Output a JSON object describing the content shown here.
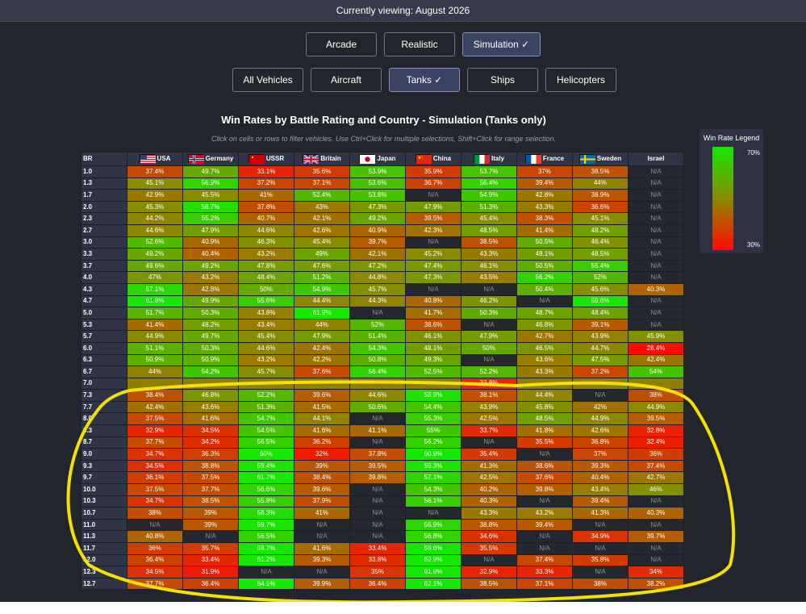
{
  "header": {
    "viewing": "Currently viewing: August 2026"
  },
  "modes": [
    {
      "label": "Arcade",
      "active": false
    },
    {
      "label": "Realistic",
      "active": false
    },
    {
      "label": "Simulation ✓",
      "active": true
    }
  ],
  "vehicle_types": [
    {
      "label": "All Vehicles",
      "active": false
    },
    {
      "label": "Aircraft",
      "active": false
    },
    {
      "label": "Tanks ✓",
      "active": true
    },
    {
      "label": "Ships",
      "active": false
    },
    {
      "label": "Helicopters",
      "active": false
    }
  ],
  "table": {
    "title": "Win Rates by Battle Rating and Country - Simulation (Tanks only)",
    "subtitle": "Click on cells or rows to filter vehicles. Use Ctrl+Click for multiple selections, Shift+Click for range selection.",
    "br_header": "BR",
    "countries": [
      {
        "name": "USA",
        "flag": "usa-flag-icon"
      },
      {
        "name": "Germany",
        "flag": "germany-flag-icon"
      },
      {
        "name": "USSR",
        "flag": "ussr-flag-icon"
      },
      {
        "name": "Britain",
        "flag": "britain-flag-icon"
      },
      {
        "name": "Japan",
        "flag": "japan-flag-icon"
      },
      {
        "name": "China",
        "flag": "china-flag-icon"
      },
      {
        "name": "Italy",
        "flag": "italy-flag-icon"
      },
      {
        "name": "France",
        "flag": "france-flag-icon"
      },
      {
        "name": "Sweden",
        "flag": "sweden-flag-icon"
      },
      {
        "name": "Israel",
        "flag": ""
      }
    ],
    "rows": [
      {
        "br": "1.0",
        "cells": [
          "37.4%",
          "49.7%",
          "33.1%",
          "35.6%",
          "53.9%",
          "35.9%",
          "53.7%",
          "37%",
          "38.5%",
          "N/A"
        ]
      },
      {
        "br": "1.3",
        "cells": [
          "45.1%",
          "56.9%",
          "37.2%",
          "37.1%",
          "53.6%",
          "36.7%",
          "56.4%",
          "39.4%",
          "44%",
          "N/A"
        ]
      },
      {
        "br": "1.7",
        "cells": [
          "42.9%",
          "45.5%",
          "41%",
          "52.4%",
          "53.8%",
          "N/A",
          "54.9%",
          "42.8%",
          "38.9%",
          "N/A"
        ]
      },
      {
        "br": "2.0",
        "cells": [
          "45.3%",
          "58.7%",
          "37.8%",
          "43%",
          "47.3%",
          "47.9%",
          "51.3%",
          "43.3%",
          "36.6%",
          "N/A"
        ]
      },
      {
        "br": "2.3",
        "cells": [
          "44.2%",
          "55.2%",
          "40.7%",
          "42.1%",
          "49.2%",
          "39.5%",
          "45.4%",
          "38.3%",
          "45.1%",
          "N/A"
        ]
      },
      {
        "br": "2.7",
        "cells": [
          "44.6%",
          "47.9%",
          "44.6%",
          "42.6%",
          "40.9%",
          "42.3%",
          "48.5%",
          "41.4%",
          "48.2%",
          "N/A"
        ]
      },
      {
        "br": "3.0",
        "cells": [
          "52.6%",
          "40.9%",
          "46.3%",
          "45.4%",
          "39.7%",
          "N/A",
          "38.5%",
          "50.5%",
          "46.4%",
          "N/A"
        ]
      },
      {
        "br": "3.3",
        "cells": [
          "49.2%",
          "40.4%",
          "43.2%",
          "49%",
          "42.1%",
          "45.2%",
          "43.3%",
          "48.1%",
          "48.5%",
          "N/A"
        ]
      },
      {
        "br": "3.7",
        "cells": [
          "49.6%",
          "49.2%",
          "47.8%",
          "47.6%",
          "47.2%",
          "47.4%",
          "46.1%",
          "50.5%",
          "55.4%",
          "N/A"
        ]
      },
      {
        "br": "4.0",
        "cells": [
          "47%",
          "43.2%",
          "48.4%",
          "51.2%",
          "44.8%",
          "47.3%",
          "43.5%",
          "56.2%",
          "52%",
          "N/A"
        ]
      },
      {
        "br": "4.3",
        "cells": [
          "57.1%",
          "42.8%",
          "50%",
          "54.9%",
          "45.7%",
          "N/A",
          "N/A",
          "50.4%",
          "45.6%",
          "40.3%"
        ]
      },
      {
        "br": "4.7",
        "cells": [
          "61.9%",
          "49.9%",
          "55.6%",
          "44.4%",
          "44.3%",
          "40.8%",
          "46.2%",
          "N/A",
          "59.6%",
          "N/A"
        ]
      },
      {
        "br": "5.0",
        "cells": [
          "51.7%",
          "50.3%",
          "43.8%",
          "61.9%",
          "N/A",
          "41.7%",
          "50.3%",
          "48.7%",
          "48.4%",
          "N/A"
        ]
      },
      {
        "br": "5.3",
        "cells": [
          "41.4%",
          "48.2%",
          "43.4%",
          "44%",
          "52%",
          "38.6%",
          "N/A",
          "46.8%",
          "39.1%",
          "N/A"
        ]
      },
      {
        "br": "5.7",
        "cells": [
          "44.9%",
          "49.7%",
          "45.4%",
          "47.9%",
          "51.4%",
          "46.1%",
          "47.9%",
          "42.7%",
          "43.9%",
          "45.9%"
        ]
      },
      {
        "br": "6.0",
        "cells": [
          "51.1%",
          "50.3%",
          "44.6%",
          "42.4%",
          "54.3%",
          "48.1%",
          "50%",
          "46.5%",
          "44.7%",
          "28.4%"
        ]
      },
      {
        "br": "6.3",
        "cells": [
          "50.9%",
          "50.9%",
          "43.2%",
          "42.2%",
          "50.8%",
          "49.3%",
          "N/A",
          "43.6%",
          "47.5%",
          "42.4%"
        ]
      },
      {
        "br": "6.7",
        "cells": [
          "44%",
          "54.2%",
          "45.7%",
          "37.6%",
          "56.4%",
          "52.5%",
          "52.2%",
          "43.3%",
          "37.2%",
          "54%"
        ]
      },
      {
        "br": "7.0",
        "cells": [
          "",
          "",
          "",
          "",
          "",
          "",
          "33.8%",
          "",
          "",
          ""
        ]
      },
      {
        "br": "7.3",
        "cells": [
          "38.4%",
          "46.8%",
          "52.2%",
          "39.6%",
          "44.6%",
          "58.9%",
          "38.1%",
          "44.4%",
          "N/A",
          "38%"
        ]
      },
      {
        "br": "7.7",
        "cells": [
          "42.4%",
          "43.6%",
          "51.3%",
          "41.5%",
          "50.6%",
          "54.4%",
          "43.9%",
          "45.8%",
          "42%",
          "44.9%"
        ]
      },
      {
        "br": "8.0",
        "cells": [
          "37.5%",
          "41.6%",
          "54.7%",
          "44.1%",
          "N/A",
          "55.3%",
          "42.5%",
          "48.5%",
          "44.9%",
          "39.5%"
        ]
      },
      {
        "br": "8.3",
        "cells": [
          "32.9%",
          "34.5%",
          "54.5%",
          "41.6%",
          "41.1%",
          "55%",
          "33.7%",
          "41.8%",
          "42.6%",
          "32.8%"
        ]
      },
      {
        "br": "8.7",
        "cells": [
          "37.7%",
          "34.2%",
          "56.5%",
          "36.2%",
          "N/A",
          "56.2%",
          "N/A",
          "35.5%",
          "36.8%",
          "32.4%"
        ]
      },
      {
        "br": "9.0",
        "cells": [
          "34.7%",
          "36.3%",
          "60%",
          "32%",
          "37.8%",
          "60.9%",
          "35.4%",
          "N/A",
          "37%",
          "36%"
        ]
      },
      {
        "br": "9.3",
        "cells": [
          "34.5%",
          "38.8%",
          "59.4%",
          "39%",
          "39.5%",
          "59.3%",
          "41.3%",
          "38.6%",
          "39.3%",
          "37.4%"
        ]
      },
      {
        "br": "9.7",
        "cells": [
          "36.1%",
          "37.5%",
          "61.7%",
          "38.4%",
          "39.8%",
          "57.1%",
          "42.5%",
          "37.6%",
          "40.4%",
          "42.7%"
        ]
      },
      {
        "br": "10.0",
        "cells": [
          "37.5%",
          "37.7%",
          "56.6%",
          "39.6%",
          "N/A",
          "54.3%",
          "40.2%",
          "39.8%",
          "43.4%",
          "46%"
        ]
      },
      {
        "br": "10.3",
        "cells": [
          "34.7%",
          "38.5%",
          "55.8%",
          "37.9%",
          "N/A",
          "56.1%",
          "40.3%",
          "N/A",
          "39.4%",
          "N/A"
        ]
      },
      {
        "br": "10.7",
        "cells": [
          "38%",
          "39%",
          "58.3%",
          "41%",
          "N/A",
          "N/A",
          "43.3%",
          "43.2%",
          "41.3%",
          "40.3%"
        ]
      },
      {
        "br": "11.0",
        "cells": [
          "N/A",
          "39%",
          "59.7%",
          "N/A",
          "N/A",
          "56.9%",
          "38.8%",
          "39.4%",
          "N/A",
          "N/A"
        ]
      },
      {
        "br": "11.3",
        "cells": [
          "40.8%",
          "N/A",
          "56.5%",
          "N/A",
          "N/A",
          "56.8%",
          "34.6%",
          "N/A",
          "34.9%",
          "39.7%"
        ]
      },
      {
        "br": "11.7",
        "cells": [
          "36%",
          "35.7%",
          "59.7%",
          "41.6%",
          "33.4%",
          "59.6%",
          "35.5%",
          "N/A",
          "N/A",
          "N/A"
        ]
      },
      {
        "br": "12.0",
        "cells": [
          "36.4%",
          "33.4%",
          "61.2%",
          "39.3%",
          "33.8%",
          "62.9%",
          "N/A",
          "37.4%",
          "35.8%",
          "N/A"
        ]
      },
      {
        "br": "12.3",
        "cells": [
          "34.5%",
          "31.9%",
          "N/A",
          "N/A",
          "35%",
          "61.9%",
          "32.9%",
          "33.3%",
          "N/A",
          "34%"
        ]
      },
      {
        "br": "12.7",
        "cells": [
          "37.7%",
          "36.4%",
          "64.1%",
          "39.9%",
          "36.4%",
          "62.1%",
          "38.5%",
          "37.1%",
          "38%",
          "38.2%"
        ]
      }
    ]
  },
  "legend": {
    "title": "Win Rate Legend",
    "high": "70%",
    "low": "30%"
  },
  "colors": {
    "high": "#17e800",
    "mid": "#8a8a00",
    "low": "#ff0a00",
    "na": "#25272f",
    "annotation": "#f5e000"
  }
}
